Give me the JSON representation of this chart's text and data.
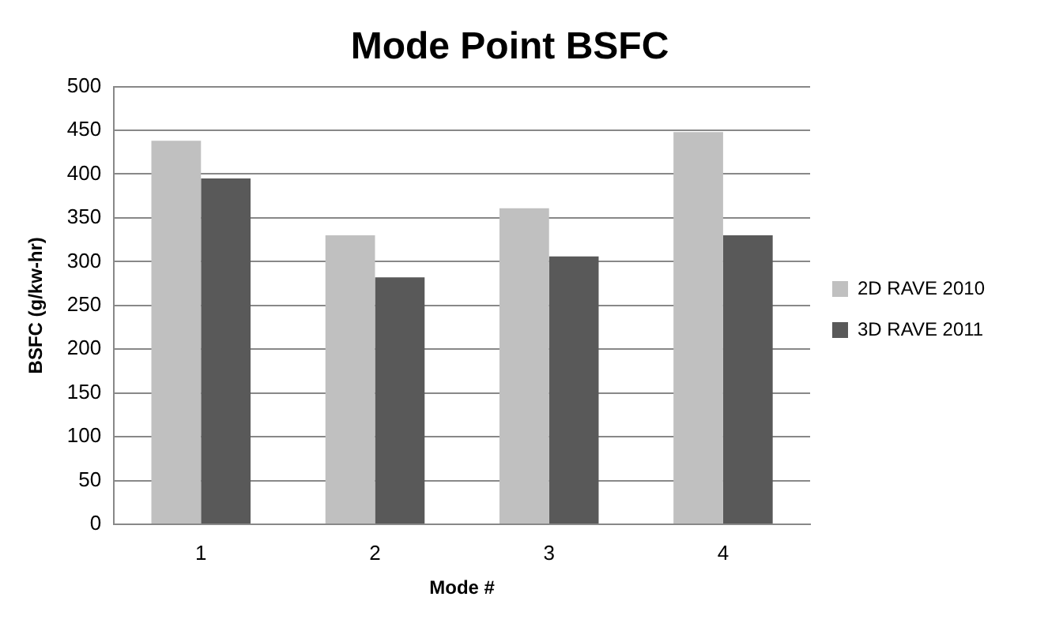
{
  "chart_data": {
    "type": "bar",
    "title": "Mode Point BSFC",
    "xlabel": "Mode #",
    "ylabel": "BSFC (g/kw-hr)",
    "categories": [
      "1",
      "2",
      "3",
      "4"
    ],
    "series": [
      {
        "name": "2D RAVE 2010",
        "color": "#c0c0c0",
        "values": [
          438,
          330,
          361,
          448
        ]
      },
      {
        "name": "3D RAVE 2011",
        "color": "#595959",
        "values": [
          395,
          282,
          306,
          330
        ]
      }
    ],
    "ylim": [
      0,
      500
    ],
    "yticks": [
      0,
      50,
      100,
      150,
      200,
      250,
      300,
      350,
      400,
      450,
      500
    ],
    "grid": "y",
    "legend": "right"
  }
}
